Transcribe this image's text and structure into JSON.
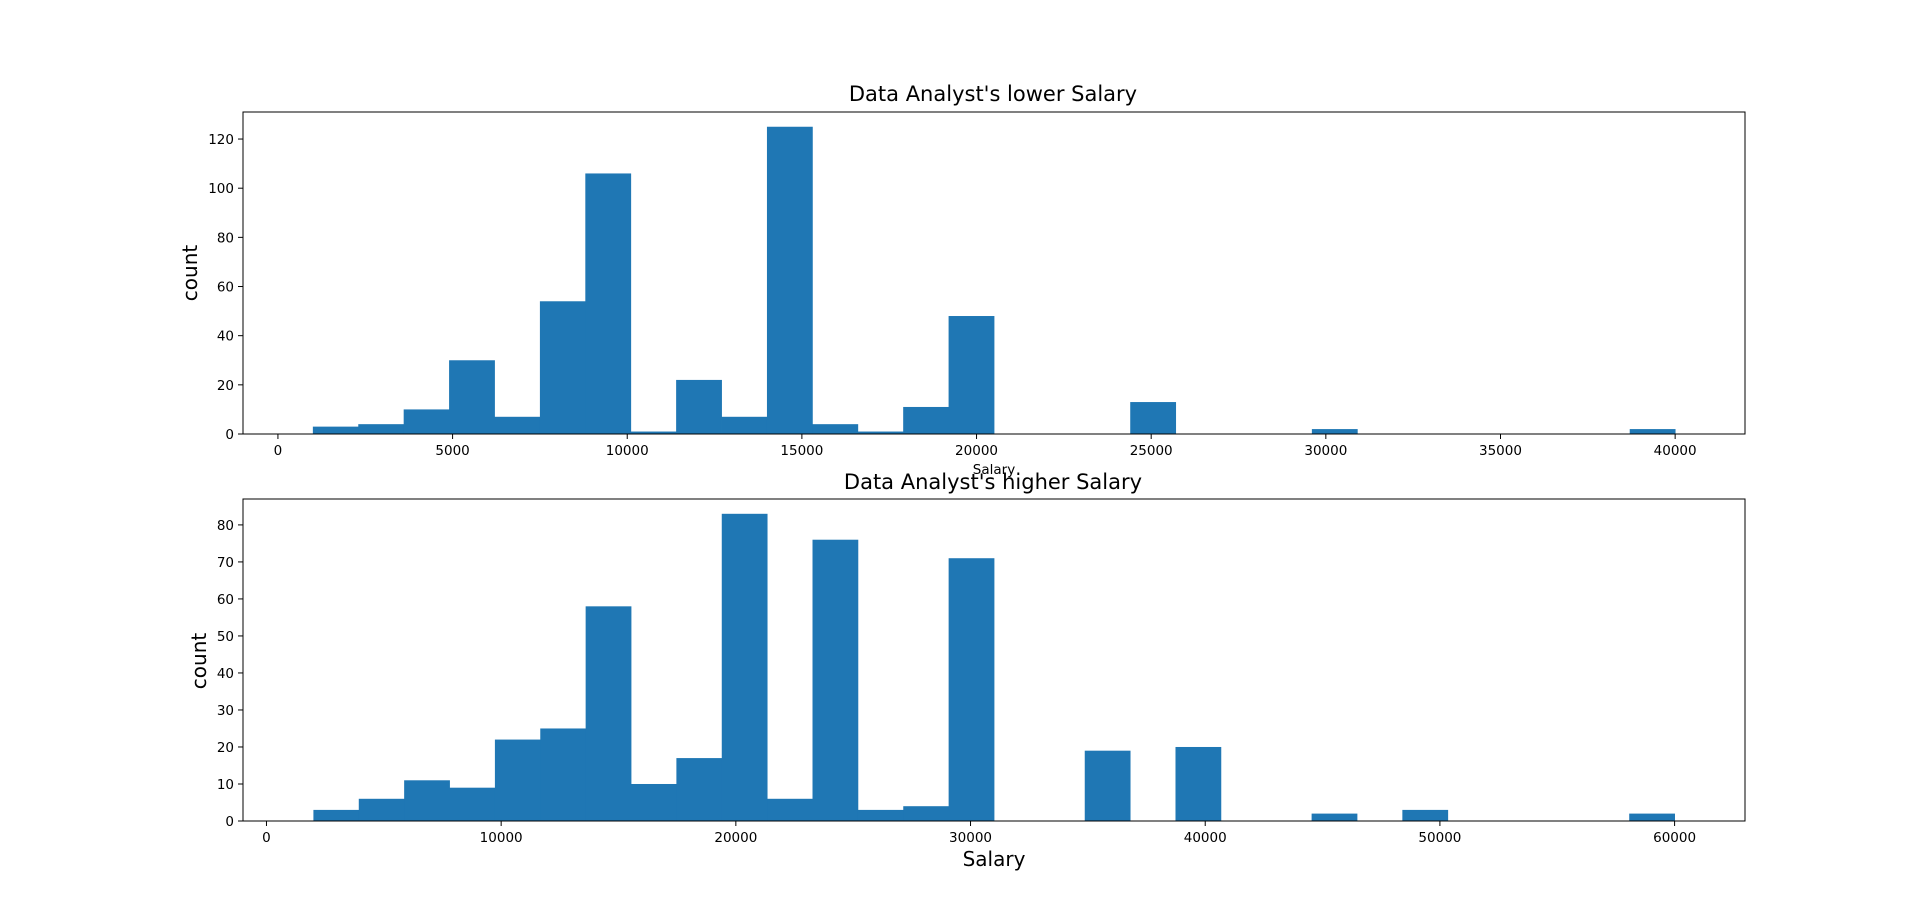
{
  "chart_data": [
    {
      "type": "bar",
      "title": "Data Analyst's lower Salary",
      "xlabel": "Salary",
      "ylabel": "count",
      "xlim": [
        -1000,
        42000
      ],
      "ylim": [
        0,
        131
      ],
      "xticks": [
        0,
        5000,
        10000,
        15000,
        20000,
        25000,
        30000,
        35000,
        40000
      ],
      "yticks": [
        0,
        20,
        40,
        60,
        80,
        100,
        120
      ],
      "bin_width": 1300,
      "bin_starts": [
        1000,
        2300,
        3600,
        4900,
        6200,
        7500,
        8800,
        10100,
        11400,
        12700,
        14000,
        15300,
        16600,
        17900,
        19200,
        20500,
        21800,
        23100,
        24400,
        25700,
        27000,
        28300,
        29600,
        30900,
        32200,
        33500,
        34800,
        36100,
        37400,
        38700
      ],
      "values": [
        3,
        4,
        10,
        30,
        7,
        54,
        106,
        1,
        22,
        7,
        125,
        4,
        1,
        11,
        48,
        0,
        0,
        0,
        13,
        0,
        0,
        0,
        2,
        0,
        0,
        0,
        0,
        0,
        0,
        2
      ],
      "grid": false,
      "color": "#1f77b4"
    },
    {
      "type": "bar",
      "title": "Data Analyst's higher Salary",
      "xlabel": "Salary",
      "ylabel": "count",
      "xlim": [
        -1000,
        63000
      ],
      "ylim": [
        0,
        87
      ],
      "xticks": [
        0,
        10000,
        20000,
        30000,
        40000,
        50000,
        60000
      ],
      "yticks": [
        0,
        10,
        20,
        30,
        40,
        50,
        60,
        70,
        80
      ],
      "bin_width": 1933.33,
      "bin_starts": [
        2000,
        3933.33,
        5866.67,
        7800,
        9733.33,
        11666.67,
        13600,
        15533.33,
        17466.67,
        19400,
        21333.33,
        23266.67,
        25200,
        27133.33,
        29066.67,
        31000,
        32933.33,
        34866.67,
        36800,
        38733.33,
        40666.67,
        42600,
        44533.33,
        46466.67,
        48400,
        50333.33,
        52266.67,
        54200,
        56133.33,
        58066.67
      ],
      "values": [
        3,
        6,
        11,
        9,
        22,
        25,
        58,
        10,
        17,
        83,
        6,
        76,
        3,
        4,
        71,
        0,
        0,
        19,
        0,
        20,
        0,
        0,
        2,
        0,
        3,
        0,
        0,
        0,
        0,
        2
      ],
      "grid": false,
      "color": "#1f77b4"
    }
  ]
}
